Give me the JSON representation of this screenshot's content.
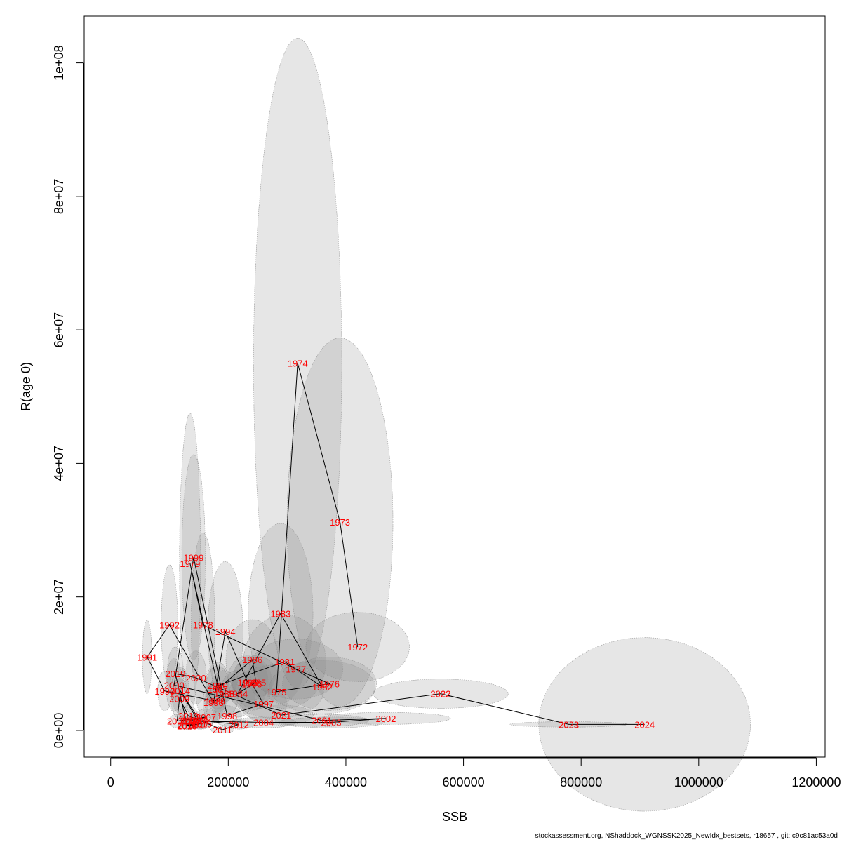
{
  "chart_data": {
    "type": "scatter",
    "xlabel": "SSB",
    "ylabel": "R(age 0)",
    "xlim": [
      -45000,
      1215000
    ],
    "ylim": [
      -4000000,
      107000000
    ],
    "x_ticks": [
      0,
      200000,
      400000,
      600000,
      800000,
      1000000,
      1200000
    ],
    "x_tick_labels": [
      "0",
      "200000",
      "400000",
      "600000",
      "800000",
      "1000000",
      "1200000"
    ],
    "y_ticks": [
      0,
      20000000,
      40000000,
      60000000,
      80000000,
      100000000
    ],
    "y_tick_labels": [
      "0e+00",
      "2e+07",
      "4e+07",
      "6e+07",
      "8e+07",
      "1e+08"
    ],
    "grid": false,
    "label_color": "#ff0000",
    "ellipse_fill": "#808080",
    "ellipse_opacity": 0.2,
    "path_color": "#000000",
    "points": [
      {
        "year": "1972",
        "ssb": 420000,
        "rec": 12500000,
        "sx": 88000,
        "sy": 5200000
      },
      {
        "year": "1973",
        "ssb": 390000,
        "rec": 31200000,
        "sx": 90000,
        "sy": 27600000
      },
      {
        "year": "1974",
        "ssb": 318000,
        "rec": 55000000,
        "sx": 75000,
        "sy": 48700000
      },
      {
        "year": "1975",
        "ssb": 282000,
        "rec": 5800000,
        "sx": 80000,
        "sy": 4000000
      },
      {
        "year": "1976",
        "ssb": 372000,
        "rec": 7000000,
        "sx": 80000,
        "sy": 4000000
      },
      {
        "year": "1977",
        "ssb": 315000,
        "rec": 9200000,
        "sx": 80000,
        "sy": 4500000
      },
      {
        "year": "1978",
        "ssb": 157000,
        "rec": 15800000,
        "sx": 20000,
        "sy": 13800000
      },
      {
        "year": "1979",
        "ssb": 135000,
        "rec": 25000000,
        "sx": 18000,
        "sy": 22500000
      },
      {
        "year": "1980",
        "ssb": 182000,
        "rec": 6700000,
        "sx": 20000,
        "sy": 3500000
      },
      {
        "year": "1981",
        "ssb": 296000,
        "rec": 10300000,
        "sx": 70000,
        "sy": 7000000
      },
      {
        "year": "1982",
        "ssb": 360000,
        "rec": 6500000,
        "sx": 90000,
        "sy": 4000000
      },
      {
        "year": "1983",
        "ssb": 289000,
        "rec": 17500000,
        "sx": 55000,
        "sy": 13500000
      },
      {
        "year": "1984",
        "ssb": 216000,
        "rec": 5500000,
        "sx": 30000,
        "sy": 3500000
      },
      {
        "year": "1985",
        "ssb": 247000,
        "rec": 7200000,
        "sx": 40000,
        "sy": 4000000
      },
      {
        "year": "1986",
        "ssb": 241000,
        "rec": 10600000,
        "sx": 45000,
        "sy": 6000000
      },
      {
        "year": "1987",
        "ssb": 182000,
        "rec": 6200000,
        "sx": 20000,
        "sy": 3500000
      },
      {
        "year": "1988",
        "ssb": 193000,
        "rec": 5500000,
        "sx": 25000,
        "sy": 3500000
      },
      {
        "year": "1989",
        "ssb": 178000,
        "rec": 4400000,
        "sx": 18000,
        "sy": 3000000
      },
      {
        "year": "1990",
        "ssb": 92000,
        "rec": 5900000,
        "sx": 12000,
        "sy": 3000000
      },
      {
        "year": "1991",
        "ssb": 62000,
        "rec": 11000000,
        "sx": 8000,
        "sy": 5500000
      },
      {
        "year": "1992",
        "ssb": 100000,
        "rec": 15800000,
        "sx": 14000,
        "sy": 9000000
      },
      {
        "year": "1993",
        "ssb": 175000,
        "rec": 4200000,
        "sx": 18000,
        "sy": 3000000
      },
      {
        "year": "1994",
        "ssb": 195000,
        "rec": 14800000,
        "sx": 30000,
        "sy": 10500000
      },
      {
        "year": "1995",
        "ssb": 233000,
        "rec": 7200000,
        "sx": 35000,
        "sy": 4000000
      },
      {
        "year": "1996",
        "ssb": 240000,
        "rec": 7000000,
        "sx": 35000,
        "sy": 4000000
      },
      {
        "year": "1997",
        "ssb": 260000,
        "rec": 4000000,
        "sx": 40000,
        "sy": 2500000
      },
      {
        "year": "1998",
        "ssb": 198000,
        "rec": 2200000,
        "sx": 25000,
        "sy": 1500000
      },
      {
        "year": "1999",
        "ssb": 141000,
        "rec": 25900000,
        "sx": 20000,
        "sy": 15400000
      },
      {
        "year": "2000",
        "ssb": 108000,
        "rec": 6800000,
        "sx": 14000,
        "sy": 4000000
      },
      {
        "year": "2001",
        "ssb": 359000,
        "rec": 1500000,
        "sx": 80000,
        "sy": 900000
      },
      {
        "year": "2002",
        "ssb": 468000,
        "rec": 1800000,
        "sx": 110000,
        "sy": 900000
      },
      {
        "year": "2003",
        "ssb": 375000,
        "rec": 1200000,
        "sx": 90000,
        "sy": 800000
      },
      {
        "year": "2004",
        "ssb": 260000,
        "rec": 1200000,
        "sx": 55000,
        "sy": 800000
      },
      {
        "year": "2005",
        "ssb": 142000,
        "rec": 1400000,
        "sx": 18000,
        "sy": 1000000
      },
      {
        "year": "2006",
        "ssb": 135000,
        "rec": 1500000,
        "sx": 18000,
        "sy": 1000000
      },
      {
        "year": "2007",
        "ssb": 162000,
        "rec": 2000000,
        "sx": 20000,
        "sy": 1200000
      },
      {
        "year": "2008",
        "ssb": 113000,
        "rec": 1400000,
        "sx": 14000,
        "sy": 1000000
      },
      {
        "year": "2009",
        "ssb": 117000,
        "rec": 4800000,
        "sx": 15000,
        "sy": 3000000
      },
      {
        "year": "2010",
        "ssb": 132000,
        "rec": 2200000,
        "sx": 16000,
        "sy": 1500000
      },
      {
        "year": "2011",
        "ssb": 190000,
        "rec": 100000,
        "sx": 20000,
        "sy": 500000
      },
      {
        "year": "2012",
        "ssb": 218000,
        "rec": 900000,
        "sx": 25000,
        "sy": 700000
      },
      {
        "year": "2013",
        "ssb": 148000,
        "rec": 1500000,
        "sx": 18000,
        "sy": 1000000
      },
      {
        "year": "2014",
        "ssb": 118000,
        "rec": 6000000,
        "sx": 15000,
        "sy": 3500000
      },
      {
        "year": "2015",
        "ssb": 155000,
        "rec": 1000000,
        "sx": 18000,
        "sy": 800000
      },
      {
        "year": "2016",
        "ssb": 130000,
        "rec": 800000,
        "sx": 15000,
        "sy": 600000
      },
      {
        "year": "2017",
        "ssb": 150000,
        "rec": 900000,
        "sx": 18000,
        "sy": 700000
      },
      {
        "year": "2018",
        "ssb": 130000,
        "rec": 700000,
        "sx": 15000,
        "sy": 600000
      },
      {
        "year": "2019",
        "ssb": 110000,
        "rec": 8500000,
        "sx": 14000,
        "sy": 4000000
      },
      {
        "year": "2020",
        "ssb": 145000,
        "rec": 7900000,
        "sx": 18000,
        "sy": 4000000
      },
      {
        "year": "2021",
        "ssb": 290000,
        "rec": 2300000,
        "sx": 55000,
        "sy": 1500000
      },
      {
        "year": "2022",
        "ssb": 561000,
        "rec": 5500000,
        "sx": 115000,
        "sy": 2200000
      },
      {
        "year": "2023",
        "ssb": 779000,
        "rec": 900000,
        "sx": 100000,
        "sy": 400000
      },
      {
        "year": "2024",
        "ssb": 908000,
        "rec": 900000,
        "sx": 180000,
        "sy": 13000000
      }
    ]
  },
  "footer_text": "stockassessment.org, NShaddock_WGNSSK2025_NewIdx_bestsets, r18657 , git: c9c81ac53a0d"
}
